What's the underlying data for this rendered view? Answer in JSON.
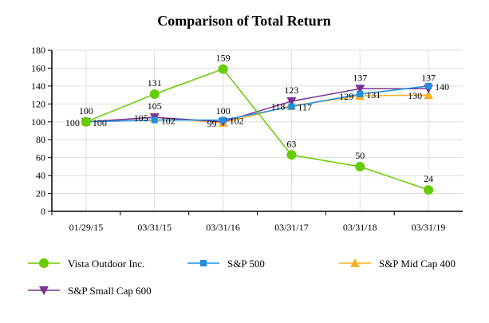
{
  "chart_data": {
    "type": "line",
    "title": "Comparison of Total Return",
    "categories": [
      "01/29/15",
      "03/31/15",
      "03/31/16",
      "03/31/17",
      "03/31/18",
      "03/31/19"
    ],
    "ylim": [
      0,
      180
    ],
    "yticks": [
      0,
      20,
      40,
      60,
      80,
      100,
      120,
      140,
      160,
      180
    ],
    "grid": true,
    "legend_position": "bottom",
    "series": [
      {
        "name": "Vista Outdoor Inc.",
        "color": "#66cc00",
        "marker": "circle",
        "label_pos": "above",
        "values": [
          100,
          131,
          159,
          63,
          50,
          24
        ]
      },
      {
        "name": "S&P 500",
        "color": "#1e90e0",
        "marker": "square",
        "label_pos": "right",
        "values": [
          100,
          102,
          102,
          117,
          131,
          140
        ]
      },
      {
        "name": "S&P Mid Cap 400",
        "color": "#f5b025",
        "marker": "triangle-up",
        "label_pos": "left",
        "values": [
          100,
          105,
          99,
          118,
          129,
          130
        ]
      },
      {
        "name": "S&P Small Cap 600",
        "color": "#7b3294",
        "marker": "triangle-down",
        "label_pos": "above",
        "values": [
          100,
          105,
          100,
          123,
          137,
          137
        ]
      }
    ]
  }
}
